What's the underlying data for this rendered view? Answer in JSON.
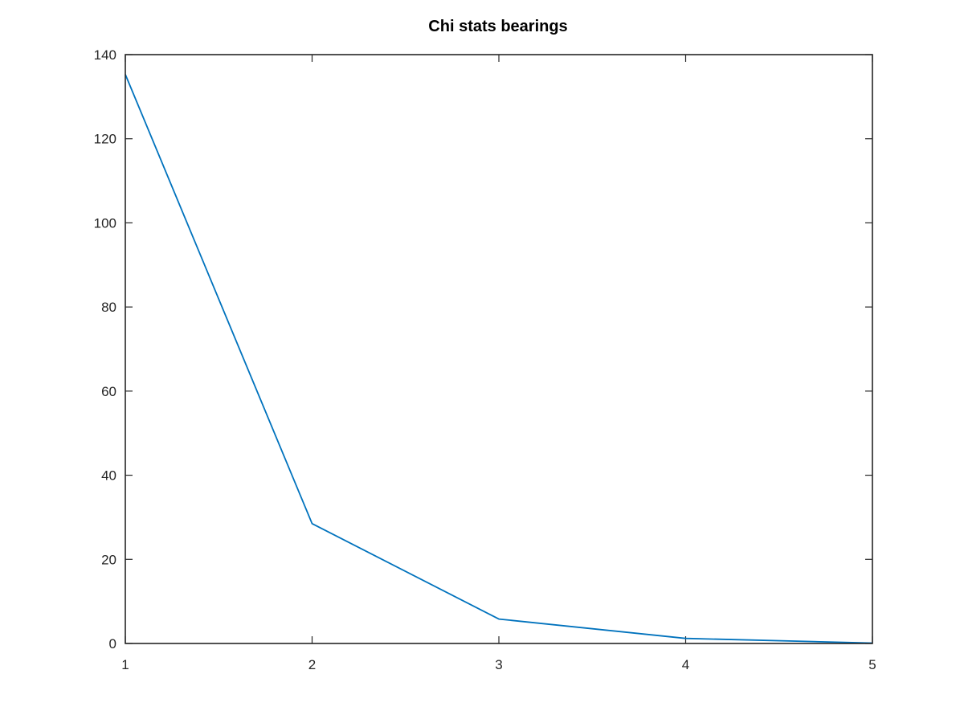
{
  "chart_data": {
    "type": "line",
    "title": "Chi stats bearings",
    "xlabel": "",
    "ylabel": "",
    "xlim": [
      1,
      5
    ],
    "ylim": [
      0,
      140
    ],
    "x_ticks": [
      "1",
      "2",
      "3",
      "4",
      "5"
    ],
    "y_ticks": [
      "0",
      "20",
      "40",
      "60",
      "80",
      "100",
      "120",
      "140"
    ],
    "grid": false,
    "box": true,
    "series": [
      {
        "color": "#0072bd",
        "x": [
          1,
          2,
          3,
          4,
          5
        ],
        "values": [
          135.3,
          28.5,
          5.8,
          1.2,
          0.1
        ]
      }
    ]
  }
}
